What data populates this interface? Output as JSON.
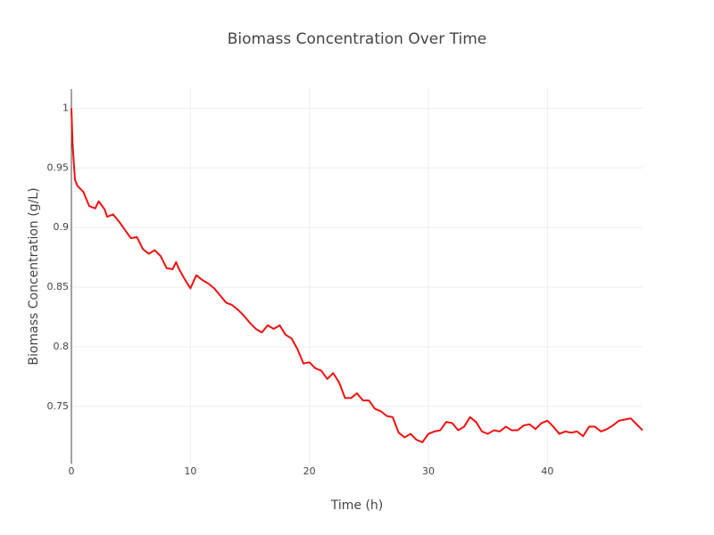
{
  "chart_data": {
    "type": "line",
    "title": "Biomass Concentration Over Time",
    "x_label": "Time (h)",
    "y_label": "Biomass Concentration (g/L)",
    "xlim": [
      0,
      48
    ],
    "ylim": [
      0.702,
      1.016
    ],
    "xticks": [
      0,
      10,
      20,
      30,
      40
    ],
    "yticks": [
      0.75,
      0.8,
      0.85,
      0.9,
      0.95,
      1
    ],
    "grid": true,
    "series": [
      {
        "color": "#ee1111",
        "x": [
          0,
          0.1,
          0.3,
          0.5,
          1,
          1.5,
          2,
          2.3,
          2.8,
          3,
          3.5,
          4,
          4.5,
          5,
          5.5,
          6,
          6.5,
          7,
          7.5,
          8,
          8.5,
          8.8,
          9,
          9.5,
          10,
          10.5,
          11,
          11.5,
          12,
          12.5,
          13,
          13.5,
          14,
          14.5,
          15,
          15.5,
          16,
          16.5,
          17,
          17.5,
          18,
          18.5,
          19,
          19.5,
          20,
          20.5,
          21,
          21.5,
          22,
          22.5,
          23,
          23.5,
          24,
          24.5,
          25,
          25.5,
          26,
          26.5,
          27,
          27.5,
          28,
          28.5,
          29,
          29.5,
          30,
          30.5,
          31,
          31.5,
          32,
          32.5,
          33,
          33.5,
          34,
          34.5,
          35,
          35.5,
          36,
          36.5,
          37,
          37.5,
          38,
          38.5,
          39,
          39.5,
          40,
          40.5,
          41,
          41.5,
          42,
          42.5,
          43,
          43.5,
          44,
          44.5,
          45,
          45.5,
          46,
          46.5,
          47,
          47.5,
          48
        ],
        "values": [
          1.0,
          0.97,
          0.94,
          0.935,
          0.93,
          0.918,
          0.916,
          0.922,
          0.915,
          0.909,
          0.911,
          0.905,
          0.898,
          0.891,
          0.892,
          0.882,
          0.878,
          0.881,
          0.876,
          0.866,
          0.865,
          0.871,
          0.866,
          0.857,
          0.849,
          0.86,
          0.856,
          0.853,
          0.849,
          0.843,
          0.837,
          0.835,
          0.831,
          0.826,
          0.82,
          0.815,
          0.812,
          0.818,
          0.815,
          0.818,
          0.81,
          0.807,
          0.798,
          0.786,
          0.787,
          0.782,
          0.78,
          0.773,
          0.778,
          0.77,
          0.757,
          0.757,
          0.761,
          0.755,
          0.755,
          0.748,
          0.746,
          0.742,
          0.741,
          0.728,
          0.724,
          0.727,
          0.722,
          0.72,
          0.727,
          0.729,
          0.73,
          0.737,
          0.736,
          0.73,
          0.733,
          0.741,
          0.737,
          0.729,
          0.727,
          0.73,
          0.729,
          0.733,
          0.73,
          0.73,
          0.734,
          0.735,
          0.731,
          0.736,
          0.738,
          0.733,
          0.727,
          0.729,
          0.728,
          0.729,
          0.725,
          0.733,
          0.733,
          0.729,
          0.731,
          0.734,
          0.738,
          0.739,
          0.74,
          0.735,
          0.73
        ]
      }
    ]
  }
}
